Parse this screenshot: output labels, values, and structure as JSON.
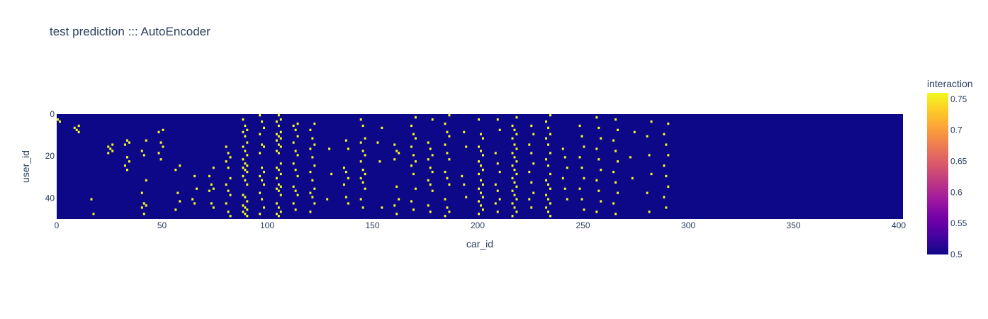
{
  "chart_data": {
    "type": "heatmap",
    "title": "test prediction ::: AutoEncoder",
    "xlabel": "car_id",
    "ylabel": "user_id",
    "x_range": [
      0,
      402
    ],
    "y_range": [
      0,
      50
    ],
    "y_reversed": true,
    "x_ticks": [
      0,
      50,
      100,
      150,
      200,
      250,
      300,
      350,
      400
    ],
    "y_ticks": [
      0,
      20,
      40
    ],
    "colorscale": [
      "#0d0887",
      "#46039f",
      "#7201a8",
      "#9c179e",
      "#bd3786",
      "#d8576b",
      "#ed7953",
      "#fb9f3a",
      "#fdca26",
      "#f0f921"
    ],
    "colorbar": {
      "title": "interaction",
      "min": 0.5,
      "max": 0.76,
      "ticks": [
        0.5,
        0.55,
        0.6,
        0.65,
        0.7,
        0.75
      ]
    },
    "base_value": 0.5,
    "high_value": 0.75,
    "high_cells": [
      [
        0,
        2
      ],
      [
        0,
        3
      ],
      [
        1,
        5
      ],
      [
        1,
        6
      ],
      [
        1,
        7
      ],
      [
        1,
        8
      ],
      [
        2,
        40
      ],
      [
        2,
        47
      ],
      [
        3,
        14
      ],
      [
        3,
        15
      ],
      [
        3,
        16
      ],
      [
        3,
        17
      ],
      [
        3,
        18
      ],
      [
        4,
        12
      ],
      [
        4,
        13
      ],
      [
        4,
        14
      ],
      [
        4,
        20
      ],
      [
        4,
        22
      ],
      [
        4,
        24
      ],
      [
        4,
        26
      ],
      [
        5,
        12
      ],
      [
        5,
        17
      ],
      [
        5,
        19
      ],
      [
        5,
        31
      ],
      [
        5,
        37
      ],
      [
        5,
        42
      ],
      [
        5,
        43
      ],
      [
        5,
        44
      ],
      [
        5,
        47
      ],
      [
        6,
        7
      ],
      [
        6,
        8
      ],
      [
        6,
        13
      ],
      [
        6,
        15
      ],
      [
        6,
        18
      ],
      [
        6,
        21
      ],
      [
        7,
        24
      ],
      [
        7,
        26
      ],
      [
        7,
        37
      ],
      [
        7,
        41
      ],
      [
        7,
        45
      ],
      [
        8,
        29
      ],
      [
        8,
        35
      ],
      [
        8,
        40
      ],
      [
        8,
        42
      ],
      [
        9,
        25
      ],
      [
        9,
        29
      ],
      [
        9,
        33
      ],
      [
        9,
        35
      ],
      [
        9,
        36
      ],
      [
        9,
        42
      ],
      [
        9,
        44
      ],
      [
        10,
        15
      ],
      [
        10,
        18
      ],
      [
        10,
        20
      ],
      [
        10,
        22
      ],
      [
        10,
        25
      ],
      [
        10,
        30
      ],
      [
        10,
        33
      ],
      [
        10,
        36
      ],
      [
        10,
        38
      ],
      [
        10,
        42
      ],
      [
        10,
        46
      ],
      [
        10,
        48
      ],
      [
        11,
        2
      ],
      [
        11,
        5
      ],
      [
        11,
        7
      ],
      [
        11,
        8
      ],
      [
        11,
        10
      ],
      [
        11,
        13
      ],
      [
        11,
        15
      ],
      [
        11,
        17
      ],
      [
        11,
        19
      ],
      [
        11,
        21
      ],
      [
        11,
        23
      ],
      [
        11,
        24
      ],
      [
        11,
        25
      ],
      [
        11,
        26
      ],
      [
        11,
        27
      ],
      [
        11,
        29
      ],
      [
        11,
        31
      ],
      [
        11,
        33
      ],
      [
        11,
        38
      ],
      [
        11,
        39
      ],
      [
        11,
        41
      ],
      [
        11,
        43
      ],
      [
        11,
        44
      ],
      [
        11,
        45
      ],
      [
        11,
        46
      ],
      [
        11,
        47
      ],
      [
        11,
        48
      ],
      [
        12,
        0
      ],
      [
        12,
        3
      ],
      [
        12,
        6
      ],
      [
        12,
        9
      ],
      [
        12,
        14
      ],
      [
        12,
        15
      ],
      [
        12,
        18
      ],
      [
        12,
        25
      ],
      [
        12,
        27
      ],
      [
        12,
        29
      ],
      [
        12,
        31
      ],
      [
        12,
        33
      ],
      [
        12,
        37
      ],
      [
        12,
        40
      ],
      [
        12,
        44
      ],
      [
        12,
        47
      ],
      [
        13,
        0
      ],
      [
        13,
        2
      ],
      [
        13,
        3
      ],
      [
        13,
        5
      ],
      [
        13,
        8
      ],
      [
        13,
        9
      ],
      [
        13,
        10
      ],
      [
        13,
        11
      ],
      [
        13,
        12
      ],
      [
        13,
        14
      ],
      [
        13,
        15
      ],
      [
        13,
        17
      ],
      [
        13,
        18
      ],
      [
        13,
        23
      ],
      [
        13,
        25
      ],
      [
        13,
        26
      ],
      [
        13,
        28
      ],
      [
        13,
        30
      ],
      [
        13,
        33
      ],
      [
        13,
        34
      ],
      [
        13,
        35
      ],
      [
        13,
        36
      ],
      [
        13,
        38
      ],
      [
        13,
        42
      ],
      [
        13,
        44
      ],
      [
        13,
        46
      ],
      [
        13,
        47
      ],
      [
        13,
        48
      ],
      [
        14,
        4
      ],
      [
        14,
        5
      ],
      [
        14,
        7
      ],
      [
        14,
        10
      ],
      [
        14,
        13
      ],
      [
        14,
        17
      ],
      [
        14,
        19
      ],
      [
        14,
        23
      ],
      [
        14,
        26
      ],
      [
        14,
        29
      ],
      [
        14,
        34
      ],
      [
        14,
        36
      ],
      [
        14,
        38
      ],
      [
        14,
        42
      ],
      [
        14,
        45
      ],
      [
        15,
        4
      ],
      [
        15,
        7
      ],
      [
        15,
        11
      ],
      [
        15,
        14
      ],
      [
        15,
        16
      ],
      [
        15,
        20
      ],
      [
        15,
        24
      ],
      [
        15,
        27
      ],
      [
        15,
        31
      ],
      [
        15,
        35
      ],
      [
        15,
        37
      ],
      [
        15,
        39
      ],
      [
        15,
        42
      ],
      [
        15,
        46
      ],
      [
        16,
        16
      ],
      [
        16,
        28
      ],
      [
        16,
        40
      ],
      [
        17,
        12
      ],
      [
        17,
        16
      ],
      [
        17,
        25
      ],
      [
        17,
        27
      ],
      [
        17,
        30
      ],
      [
        17,
        33
      ],
      [
        17,
        39
      ],
      [
        17,
        42
      ],
      [
        18,
        2
      ],
      [
        18,
        5
      ],
      [
        18,
        11
      ],
      [
        18,
        13
      ],
      [
        18,
        17
      ],
      [
        18,
        19
      ],
      [
        18,
        22
      ],
      [
        18,
        26
      ],
      [
        18,
        28
      ],
      [
        18,
        30
      ],
      [
        18,
        32
      ],
      [
        18,
        35
      ],
      [
        18,
        40
      ],
      [
        18,
        44
      ],
      [
        19,
        6
      ],
      [
        19,
        13
      ],
      [
        19,
        22
      ],
      [
        19,
        44
      ],
      [
        20,
        14
      ],
      [
        20,
        17
      ],
      [
        20,
        18
      ],
      [
        20,
        21
      ],
      [
        20,
        34
      ],
      [
        20,
        40
      ],
      [
        20,
        43
      ],
      [
        20,
        47
      ],
      [
        21,
        1
      ],
      [
        21,
        5
      ],
      [
        21,
        9
      ],
      [
        21,
        11
      ],
      [
        21,
        15
      ],
      [
        21,
        19
      ],
      [
        21,
        22
      ],
      [
        21,
        24
      ],
      [
        21,
        28
      ],
      [
        21,
        35
      ],
      [
        21,
        41
      ],
      [
        21,
        45
      ],
      [
        22,
        2
      ],
      [
        22,
        13
      ],
      [
        22,
        16
      ],
      [
        22,
        19
      ],
      [
        22,
        21
      ],
      [
        22,
        25
      ],
      [
        22,
        27
      ],
      [
        22,
        31
      ],
      [
        22,
        33
      ],
      [
        22,
        36
      ],
      [
        22,
        43
      ],
      [
        22,
        46
      ],
      [
        23,
        0
      ],
      [
        23,
        4
      ],
      [
        23,
        8
      ],
      [
        23,
        10
      ],
      [
        23,
        14
      ],
      [
        23,
        18
      ],
      [
        23,
        21
      ],
      [
        23,
        27
      ],
      [
        23,
        30
      ],
      [
        23,
        33
      ],
      [
        23,
        40
      ],
      [
        23,
        44
      ],
      [
        23,
        46
      ],
      [
        23,
        48
      ],
      [
        24,
        8
      ],
      [
        24,
        15
      ],
      [
        24,
        29
      ],
      [
        24,
        33
      ],
      [
        24,
        39
      ],
      [
        25,
        2
      ],
      [
        25,
        9
      ],
      [
        25,
        11
      ],
      [
        25,
        15
      ],
      [
        25,
        17
      ],
      [
        25,
        19
      ],
      [
        25,
        22
      ],
      [
        25,
        24
      ],
      [
        25,
        26
      ],
      [
        25,
        28
      ],
      [
        25,
        31
      ],
      [
        25,
        33
      ],
      [
        25,
        35
      ],
      [
        25,
        37
      ],
      [
        25,
        39
      ],
      [
        25,
        41
      ],
      [
        25,
        43
      ],
      [
        25,
        45
      ],
      [
        25,
        47
      ],
      [
        26,
        2
      ],
      [
        26,
        7
      ],
      [
        26,
        18
      ],
      [
        26,
        23
      ],
      [
        26,
        27
      ],
      [
        26,
        33
      ],
      [
        26,
        36
      ],
      [
        26,
        40
      ],
      [
        26,
        42
      ],
      [
        26,
        46
      ],
      [
        27,
        1
      ],
      [
        27,
        5
      ],
      [
        27,
        7
      ],
      [
        27,
        9
      ],
      [
        27,
        11
      ],
      [
        27,
        14
      ],
      [
        27,
        16
      ],
      [
        27,
        18
      ],
      [
        27,
        20
      ],
      [
        27,
        22
      ],
      [
        27,
        24
      ],
      [
        27,
        26
      ],
      [
        27,
        28
      ],
      [
        27,
        30
      ],
      [
        27,
        32
      ],
      [
        27,
        34
      ],
      [
        27,
        36
      ],
      [
        27,
        38
      ],
      [
        27,
        40
      ],
      [
        27,
        42
      ],
      [
        27,
        44
      ],
      [
        27,
        46
      ],
      [
        27,
        48
      ],
      [
        28,
        5
      ],
      [
        28,
        9
      ],
      [
        28,
        14
      ],
      [
        28,
        18
      ],
      [
        28,
        23
      ],
      [
        28,
        27
      ],
      [
        28,
        32
      ],
      [
        28,
        37
      ],
      [
        28,
        40
      ],
      [
        28,
        44
      ],
      [
        29,
        0
      ],
      [
        29,
        3
      ],
      [
        29,
        6
      ],
      [
        29,
        9
      ],
      [
        29,
        11
      ],
      [
        29,
        14
      ],
      [
        29,
        18
      ],
      [
        29,
        21
      ],
      [
        29,
        24
      ],
      [
        29,
        28
      ],
      [
        29,
        31
      ],
      [
        29,
        33
      ],
      [
        29,
        35
      ],
      [
        29,
        38
      ],
      [
        29,
        40
      ],
      [
        29,
        42
      ],
      [
        29,
        44
      ],
      [
        29,
        46
      ],
      [
        29,
        48
      ],
      [
        30,
        16
      ],
      [
        30,
        20
      ],
      [
        30,
        25
      ],
      [
        30,
        30
      ],
      [
        30,
        35
      ],
      [
        30,
        40
      ],
      [
        31,
        5
      ],
      [
        31,
        10
      ],
      [
        31,
        15
      ],
      [
        31,
        20
      ],
      [
        31,
        25
      ],
      [
        31,
        30
      ],
      [
        31,
        35
      ],
      [
        31,
        40
      ],
      [
        31,
        45
      ],
      [
        32,
        1
      ],
      [
        32,
        6
      ],
      [
        32,
        11
      ],
      [
        32,
        16
      ],
      [
        32,
        21
      ],
      [
        32,
        26
      ],
      [
        32,
        31
      ],
      [
        32,
        36
      ],
      [
        32,
        41
      ],
      [
        32,
        46
      ],
      [
        33,
        2
      ],
      [
        33,
        7
      ],
      [
        33,
        12
      ],
      [
        33,
        17
      ],
      [
        33,
        22
      ],
      [
        33,
        27
      ],
      [
        33,
        32
      ],
      [
        33,
        37
      ],
      [
        33,
        42
      ],
      [
        33,
        47
      ],
      [
        34,
        8
      ],
      [
        34,
        20
      ],
      [
        34,
        30
      ],
      [
        35,
        3
      ],
      [
        35,
        10
      ],
      [
        35,
        19
      ],
      [
        35,
        28
      ],
      [
        35,
        37
      ],
      [
        35,
        46
      ],
      [
        36,
        4
      ],
      [
        36,
        9
      ],
      [
        36,
        14
      ],
      [
        36,
        19
      ],
      [
        36,
        24
      ],
      [
        36,
        29
      ],
      [
        36,
        34
      ],
      [
        36,
        39
      ],
      [
        36,
        44
      ]
    ]
  }
}
